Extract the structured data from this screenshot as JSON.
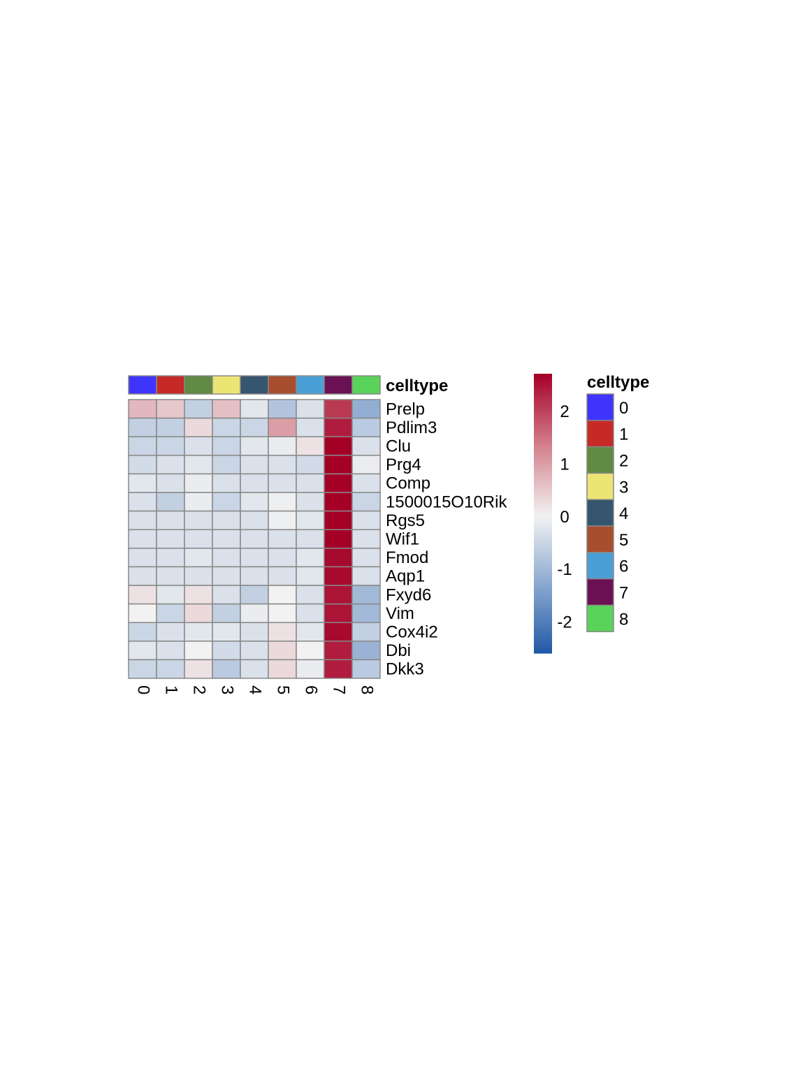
{
  "chart_data": {
    "type": "heatmap",
    "title": "",
    "columns": [
      "0",
      "1",
      "2",
      "3",
      "4",
      "5",
      "6",
      "7",
      "8"
    ],
    "rows": [
      "Prelp",
      "Pdlim3",
      "Clu",
      "Prg4",
      "Comp",
      "1500015O10Rik",
      "Rgs5",
      "Wif1",
      "Fmod",
      "Aqp1",
      "Fxyd6",
      "Vim",
      "Cox4i2",
      "Dbi",
      "Dkk3"
    ],
    "values": [
      [
        0.7,
        0.5,
        -0.6,
        0.6,
        -0.2,
        -0.8,
        -0.3,
        2.1,
        -1.2
      ],
      [
        -0.6,
        -0.6,
        0.3,
        -0.5,
        -0.5,
        1.0,
        -0.3,
        2.4,
        -0.7
      ],
      [
        -0.5,
        -0.5,
        -0.3,
        -0.5,
        -0.2,
        -0.1,
        0.2,
        2.7,
        -0.3
      ],
      [
        -0.4,
        -0.3,
        -0.2,
        -0.5,
        -0.3,
        -0.3,
        -0.4,
        2.7,
        -0.1
      ],
      [
        -0.2,
        -0.3,
        -0.1,
        -0.3,
        -0.3,
        -0.3,
        -0.3,
        2.7,
        -0.3
      ],
      [
        -0.3,
        -0.6,
        -0.1,
        -0.5,
        -0.2,
        -0.05,
        -0.3,
        2.7,
        -0.5
      ],
      [
        -0.3,
        -0.3,
        -0.3,
        -0.3,
        -0.3,
        -0.05,
        -0.2,
        2.7,
        -0.3
      ],
      [
        -0.3,
        -0.3,
        -0.3,
        -0.3,
        -0.3,
        -0.3,
        -0.3,
        2.7,
        -0.3
      ],
      [
        -0.3,
        -0.3,
        -0.2,
        -0.3,
        -0.3,
        -0.3,
        -0.2,
        2.6,
        -0.3
      ],
      [
        -0.3,
        -0.3,
        -0.3,
        -0.3,
        -0.3,
        -0.3,
        -0.2,
        2.6,
        -0.3
      ],
      [
        0.2,
        -0.2,
        0.2,
        -0.3,
        -0.6,
        0.0,
        -0.3,
        2.5,
        -1.0
      ],
      [
        0.0,
        -0.5,
        0.3,
        -0.6,
        -0.1,
        0.0,
        -0.3,
        2.5,
        -1.0
      ],
      [
        -0.5,
        -0.3,
        -0.2,
        -0.2,
        -0.3,
        0.2,
        -0.2,
        2.6,
        -0.6
      ],
      [
        -0.2,
        -0.3,
        0.0,
        -0.4,
        -0.3,
        0.3,
        0.0,
        2.4,
        -1.1
      ],
      [
        -0.5,
        -0.5,
        0.2,
        -0.7,
        -0.3,
        0.3,
        -0.1,
        2.4,
        -0.7
      ]
    ],
    "color_scale": {
      "min": -2.6,
      "max": 2.7,
      "stops": [
        {
          "value": -2.6,
          "color": "#2158a6"
        },
        {
          "value": -1.3,
          "color": "#8aa8d0"
        },
        {
          "value": 0.0,
          "color": "#f2f2f2"
        },
        {
          "value": 1.3,
          "color": "#d4848f"
        },
        {
          "value": 2.7,
          "color": "#a50026"
        }
      ],
      "ticks": [
        "2",
        "1",
        "0",
        "-1",
        "-2"
      ],
      "tick_values": [
        2,
        1,
        0,
        -1,
        -2
      ]
    },
    "annotation": {
      "label": "celltype",
      "legend_title": "celltype",
      "levels": [
        {
          "label": "0",
          "color": "#3f34fb"
        },
        {
          "label": "1",
          "color": "#c62a27"
        },
        {
          "label": "2",
          "color": "#618a45"
        },
        {
          "label": "3",
          "color": "#ece574"
        },
        {
          "label": "4",
          "color": "#36556f"
        },
        {
          "label": "5",
          "color": "#a94d2f"
        },
        {
          "label": "6",
          "color": "#4aa0d6"
        },
        {
          "label": "7",
          "color": "#6b1052"
        },
        {
          "label": "8",
          "color": "#59d359"
        }
      ]
    },
    "cell_border_color": "#888888"
  }
}
